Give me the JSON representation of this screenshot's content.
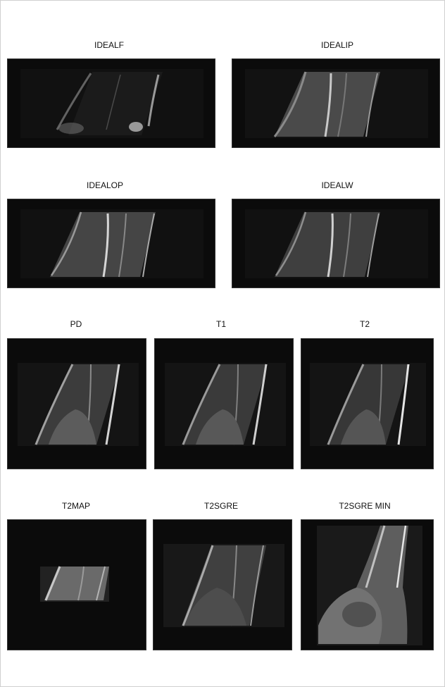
{
  "figure": {
    "panels": [
      {
        "id": "idealf",
        "label": "IDEALF"
      },
      {
        "id": "idealip",
        "label": "IDEALIP"
      },
      {
        "id": "idealop",
        "label": "IDEALOP"
      },
      {
        "id": "idealw",
        "label": "IDEALW"
      },
      {
        "id": "pd",
        "label": "PD"
      },
      {
        "id": "t1",
        "label": "T1"
      },
      {
        "id": "t2",
        "label": "T2"
      },
      {
        "id": "t2map",
        "label": "T2MAP"
      },
      {
        "id": "t2sgre",
        "label": "T2SGRE"
      },
      {
        "id": "t2sgremin",
        "label": "T2SGRE MIN"
      }
    ]
  },
  "colors": {
    "panel_background": "#0b0b0b",
    "tissue_gray": "#8a8a8a",
    "bright_signal": "#e8e8e8"
  }
}
